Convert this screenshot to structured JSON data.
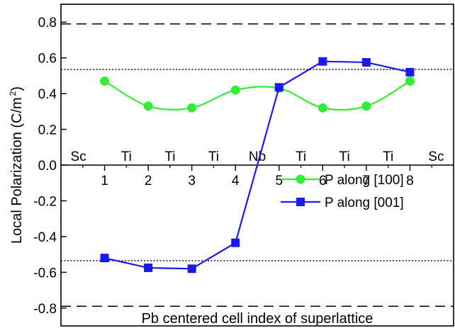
{
  "chart_data": {
    "type": "line",
    "xlabel": "Pb centered cell index of superlattice",
    "ylabel": "Local Polarization (C/m",
    "ylabel_sup": "2",
    "ylabel_end": ")",
    "xlim": [
      0,
      9
    ],
    "ylim": [
      -0.9,
      0.9
    ],
    "x_ticks": [
      1,
      2,
      3,
      4,
      5,
      6,
      7,
      8
    ],
    "x_tick_labels": [
      "1",
      "2",
      "3",
      "4",
      "5",
      "6",
      "7",
      "8"
    ],
    "y_ticks": [
      -0.8,
      -0.6,
      -0.4,
      -0.2,
      0.0,
      0.2,
      0.4,
      0.6,
      0.8
    ],
    "y_tick_labels": [
      "-0.8",
      "-0.6",
      "-0.4",
      "-0.2",
      "0.0",
      "0.2",
      "0.4",
      "0.6",
      "0.8"
    ],
    "reference_lines": [
      {
        "y": 0.79,
        "style": "dashed"
      },
      {
        "y": -0.79,
        "style": "dashed"
      },
      {
        "y": 0.535,
        "style": "dotted"
      },
      {
        "y": -0.535,
        "style": "dotted"
      }
    ],
    "layer_labels": [
      {
        "x": 0.4,
        "label": "Sc"
      },
      {
        "x": 1.5,
        "label": "Ti"
      },
      {
        "x": 2.5,
        "label": "Ti"
      },
      {
        "x": 3.5,
        "label": "Ti"
      },
      {
        "x": 4.5,
        "label": "Nb"
      },
      {
        "x": 5.5,
        "label": "Ti"
      },
      {
        "x": 6.5,
        "label": "Ti"
      },
      {
        "x": 7.5,
        "label": "Ti"
      },
      {
        "x": 8.6,
        "label": "Sc"
      }
    ],
    "series": [
      {
        "name": "P along [100]",
        "color": "#33ee33",
        "marker": "circle",
        "x": [
          1,
          2,
          3,
          4,
          5,
          6,
          7,
          8
        ],
        "y": [
          0.47,
          0.33,
          0.32,
          0.42,
          0.43,
          0.32,
          0.33,
          0.47
        ]
      },
      {
        "name": "P along [001]",
        "color": "#1a1aee",
        "marker": "square",
        "x": [
          1,
          2,
          3,
          4,
          5,
          6,
          7,
          8
        ],
        "y": [
          -0.52,
          -0.575,
          -0.58,
          -0.435,
          0.435,
          0.58,
          0.575,
          0.52
        ]
      }
    ],
    "legend_position": "right"
  }
}
